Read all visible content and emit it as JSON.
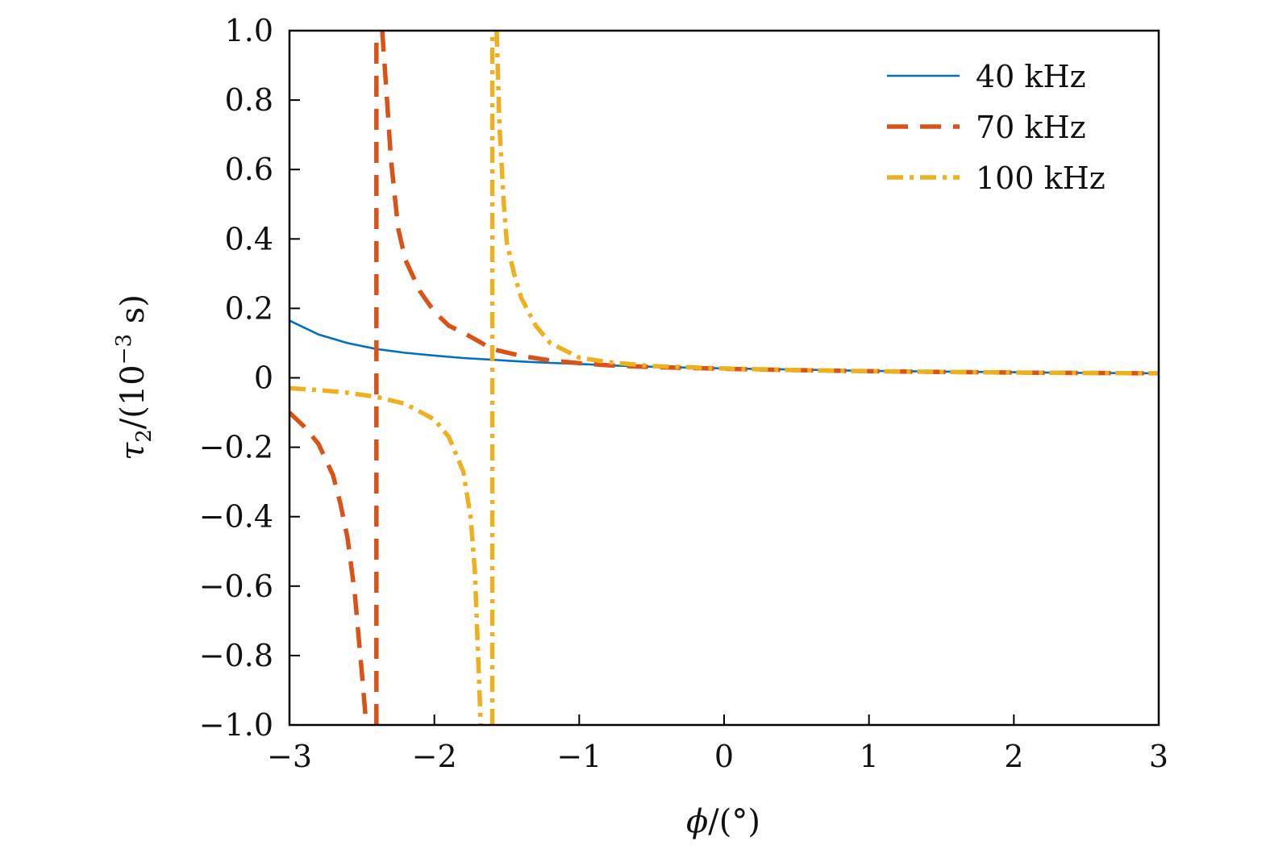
{
  "chart_data": {
    "type": "line",
    "xlabel_symbol": "ϕ",
    "xlabel_unit": "/(°)",
    "ylabel_symbol": "τ",
    "ylabel_subscript": "2",
    "ylabel_unit": "/(10",
    "ylabel_exponent": "−3",
    "ylabel_unit_tail": " s)",
    "xlim": [
      -3,
      3
    ],
    "ylim": [
      -1.0,
      1.0
    ],
    "xticks": [
      -3,
      -2,
      -1,
      0,
      1,
      2,
      3
    ],
    "xtick_labels": [
      "−3",
      "−2",
      "−1",
      "0",
      "1",
      "2",
      "3"
    ],
    "yticks": [
      1.0,
      0.8,
      0.6,
      0.4,
      0.2,
      0,
      -0.2,
      -0.4,
      -0.6,
      -0.8,
      -1.0
    ],
    "ytick_labels": [
      "1.0",
      "0.8",
      "0.6",
      "0.4",
      "0.2",
      "0",
      "−0.2",
      "−0.4",
      "−0.6",
      "−0.8",
      "−1.0"
    ],
    "grid": false,
    "legend_position": "top-right",
    "series": [
      {
        "name": "40 kHz",
        "color": "#0072bd",
        "style": "solid",
        "x": [
          -3.0,
          -2.8,
          -2.6,
          -2.4,
          -2.2,
          -2.0,
          -1.8,
          -1.6,
          -1.4,
          -1.2,
          -1.0,
          -0.8,
          -0.6,
          -0.4,
          -0.2,
          0.0,
          0.3,
          0.6,
          1.0,
          1.5,
          2.0,
          2.5,
          3.0
        ],
        "y": [
          0.165,
          0.125,
          0.1,
          0.083,
          0.072,
          0.064,
          0.057,
          0.052,
          0.047,
          0.043,
          0.04,
          0.036,
          0.033,
          0.031,
          0.029,
          0.027,
          0.025,
          0.023,
          0.02,
          0.018,
          0.016,
          0.014,
          0.013
        ]
      },
      {
        "name": "70 kHz",
        "color": "#d95319",
        "style": "dashed",
        "x_pole": -2.4,
        "segments": [
          {
            "x": [
              -3.0,
              -2.9,
              -2.8,
              -2.7,
              -2.65,
              -2.6,
              -2.55,
              -2.5,
              -2.47
            ],
            "y": [
              -0.1,
              -0.14,
              -0.19,
              -0.28,
              -0.36,
              -0.46,
              -0.62,
              -0.85,
              -1.0
            ]
          },
          {
            "x": [
              -2.36,
              -2.33,
              -2.3,
              -2.25,
              -2.2,
              -2.1,
              -2.0,
              -1.9,
              -1.8,
              -1.6,
              -1.4,
              -1.2,
              -1.0,
              -0.8,
              -0.5,
              0.0,
              0.5,
              1.0,
              1.5,
              2.0,
              2.5,
              3.0
            ],
            "y": [
              1.0,
              0.82,
              0.63,
              0.43,
              0.34,
              0.25,
              0.19,
              0.15,
              0.13,
              0.083,
              0.063,
              0.05,
              0.042,
              0.036,
              0.031,
              0.026,
              0.022,
              0.019,
              0.017,
              0.015,
              0.014,
              0.013
            ]
          }
        ]
      },
      {
        "name": "100 kHz",
        "color": "#edb120",
        "style": "dashdot",
        "x_pole": -1.6,
        "segments": [
          {
            "x": [
              -3.0,
              -2.8,
              -2.6,
              -2.4,
              -2.2,
              -2.0,
              -1.9,
              -1.8,
              -1.75,
              -1.72,
              -1.7,
              -1.68
            ],
            "y": [
              -0.03,
              -0.035,
              -0.043,
              -0.055,
              -0.075,
              -0.12,
              -0.17,
              -0.27,
              -0.4,
              -0.56,
              -0.78,
              -1.0
            ]
          },
          {
            "x": [
              -1.57,
              -1.55,
              -1.52,
              -1.5,
              -1.45,
              -1.4,
              -1.3,
              -1.2,
              -1.0,
              -0.8,
              -0.5,
              0.0,
              0.5,
              1.0,
              1.5,
              2.0,
              2.5,
              3.0
            ],
            "y": [
              1.0,
              0.72,
              0.5,
              0.39,
              0.3,
              0.23,
              0.15,
              0.1,
              0.058,
              0.045,
              0.034,
              0.027,
              0.022,
              0.019,
              0.017,
              0.015,
              0.014,
              0.013
            ]
          }
        ]
      }
    ]
  }
}
